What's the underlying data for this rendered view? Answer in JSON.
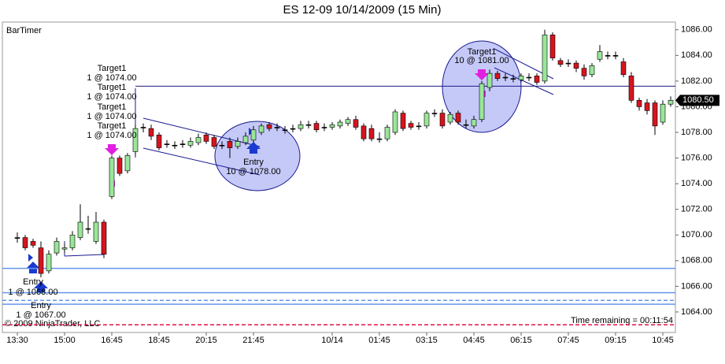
{
  "chart_data": {
    "type": "candlestick",
    "title": "ES 12-09  10/14/2009 (15 Min)",
    "indicator_label": "BarTimer",
    "copyright": "© 2009 NinjaTrader, LLC",
    "timer_text": "Time remaining = 00:11:54",
    "categories": [
      "13:30",
      null,
      null,
      null,
      null,
      null,
      "15:00",
      null,
      null,
      null,
      null,
      null,
      "16:45",
      null,
      null,
      null,
      null,
      null,
      "18:45",
      null,
      null,
      null,
      null,
      null,
      "20:15",
      null,
      null,
      null,
      null,
      null,
      "21:45",
      null,
      null,
      null,
      null,
      null,
      null,
      null,
      null,
      null,
      "10/14",
      null,
      null,
      null,
      null,
      null,
      "01:45",
      null,
      null,
      null,
      null,
      null,
      "03:15",
      null,
      null,
      null,
      null,
      null,
      "04:45",
      null,
      null,
      null,
      null,
      null,
      "06:15",
      null,
      null,
      null,
      null,
      null,
      "07:45",
      null,
      null,
      null,
      null,
      null,
      "09:15",
      null,
      null,
      null,
      null,
      null,
      "10:45",
      null
    ],
    "open": [
      1069.8,
      1069.8,
      1069.5,
      1069.0,
      1067.2,
      1068.6,
      1068.9,
      1069.0,
      1069.8,
      1070.5,
      1069.5,
      1071.0,
      1073.0,
      1076.0,
      1075.0,
      1076.5,
      1078.4,
      1078.3,
      1077.8,
      1077.1,
      1077.0,
      1077.1,
      1077.0,
      1077.2,
      1077.8,
      1077.6,
      1077.0,
      1077.3,
      1076.9,
      1077.2,
      1077.4,
      1078.0,
      1078.6,
      1078.4,
      1078.2,
      1078.3,
      1078.3,
      1078.6,
      1078.7,
      1078.4,
      1078.4,
      1078.5,
      1078.7,
      1079.0,
      1078.5,
      1078.3,
      1077.5,
      1077.5,
      1078.0,
      1079.5,
      1078.7,
      1078.5,
      1078.5,
      1079.5,
      1079.5,
      1078.8,
      1079.5,
      1078.6,
      1078.5,
      1079.0,
      1081.5,
      1082.6,
      1082.3,
      1082.2,
      1082.1,
      1082.3,
      1082.4,
      1082.0,
      1085.6,
      1083.6,
      1083.4,
      1083.4,
      1083.0,
      1082.5,
      1083.7,
      1084.0,
      1084.0,
      1083.5,
      1082.4,
      1080.5,
      1080.3,
      1080.3,
      1078.8,
      1080.2
    ],
    "high": [
      1070.2,
      1070.0,
      1069.7,
      1069.5,
      1068.8,
      1069.8,
      1069.3,
      1070.3,
      1072.4,
      1071.5,
      1071.8,
      1071.2,
      1076.2,
      1076.2,
      1076.4,
      1078.6,
      1078.7,
      1078.6,
      1078.0,
      1077.4,
      1077.3,
      1077.4,
      1077.6,
      1077.9,
      1078.0,
      1077.8,
      1077.3,
      1077.6,
      1077.6,
      1078.0,
      1078.5,
      1078.7,
      1078.8,
      1078.7,
      1078.5,
      1078.6,
      1078.9,
      1078.9,
      1078.9,
      1078.7,
      1078.8,
      1079.0,
      1079.2,
      1079.3,
      1078.7,
      1078.6,
      1078.0,
      1078.6,
      1079.8,
      1079.7,
      1078.9,
      1078.8,
      1079.7,
      1079.8,
      1079.8,
      1079.6,
      1079.7,
      1079.0,
      1079.3,
      1082.0,
      1082.9,
      1082.8,
      1082.6,
      1082.5,
      1082.6,
      1082.6,
      1082.6,
      1086.0,
      1085.8,
      1083.8,
      1083.7,
      1083.6,
      1083.3,
      1083.4,
      1084.8,
      1084.3,
      1084.3,
      1083.8,
      1082.7,
      1080.7,
      1080.6,
      1080.5,
      1080.5,
      1080.8
    ],
    "low": [
      1069.4,
      1068.8,
      1069.0,
      1066.7,
      1067.0,
      1068.4,
      1068.6,
      1068.8,
      1069.6,
      1070.1,
      1069.3,
      1068.2,
      1072.8,
      1074.6,
      1074.8,
      1076.2,
      1078.0,
      1077.4,
      1076.6,
      1076.8,
      1076.7,
      1076.8,
      1076.8,
      1077.0,
      1077.1,
      1076.7,
      1076.7,
      1076.0,
      1076.7,
      1077.0,
      1077.2,
      1077.8,
      1078.1,
      1078.1,
      1077.9,
      1078.0,
      1078.1,
      1078.3,
      1078.0,
      1078.1,
      1078.2,
      1078.3,
      1078.5,
      1078.2,
      1077.3,
      1077.3,
      1077.2,
      1077.3,
      1077.8,
      1078.1,
      1078.2,
      1078.2,
      1078.3,
      1079.2,
      1078.3,
      1078.6,
      1078.6,
      1078.3,
      1078.3,
      1078.8,
      1081.2,
      1082.0,
      1082.0,
      1081.9,
      1081.9,
      1082.0,
      1081.7,
      1081.8,
      1083.6,
      1083.1,
      1083.1,
      1082.7,
      1082.1,
      1082.3,
      1083.5,
      1083.7,
      1083.7,
      1082.3,
      1080.3,
      1079.7,
      1079.4,
      1077.8,
      1078.6,
      1080.0
    ],
    "close": [
      1069.8,
      1069.0,
      1069.2,
      1067.0,
      1068.5,
      1069.5,
      1069.0,
      1070.0,
      1071.0,
      1070.5,
      1071.0,
      1068.5,
      1076.0,
      1074.8,
      1076.2,
      1078.3,
      1078.4,
      1077.7,
      1076.8,
      1077.1,
      1077.0,
      1077.1,
      1077.3,
      1077.6,
      1077.3,
      1076.9,
      1077.0,
      1076.8,
      1077.3,
      1077.7,
      1078.2,
      1078.5,
      1078.3,
      1078.4,
      1078.2,
      1078.3,
      1078.6,
      1078.6,
      1078.2,
      1078.4,
      1078.6,
      1078.8,
      1079.0,
      1078.4,
      1077.5,
      1077.5,
      1077.5,
      1078.4,
      1079.6,
      1078.3,
      1078.4,
      1078.5,
      1079.5,
      1079.5,
      1078.5,
      1079.4,
      1078.8,
      1078.6,
      1079.0,
      1081.8,
      1082.6,
      1082.2,
      1082.3,
      1082.2,
      1082.4,
      1082.3,
      1081.9,
      1085.6,
      1083.8,
      1083.3,
      1083.4,
      1083.0,
      1082.4,
      1083.2,
      1084.3,
      1084.0,
      1084.0,
      1082.5,
      1080.5,
      1080.0,
      1079.7,
      1078.5,
      1080.2,
      1080.5
    ],
    "up_color": "#99e699",
    "down_color": "#d7141e",
    "ylim": [
      1062.4,
      1086.6
    ],
    "yticks": [
      {
        "value": 1064,
        "label": "1064.00"
      },
      {
        "value": 1066,
        "label": "1066.00"
      },
      {
        "value": 1068,
        "label": "1068.00"
      },
      {
        "value": 1070,
        "label": "1070.00"
      },
      {
        "value": 1072,
        "label": "1072.00"
      },
      {
        "value": 1074,
        "label": "1074.00"
      },
      {
        "value": 1076,
        "label": "1076.00"
      },
      {
        "value": 1078,
        "label": "1078.00"
      },
      {
        "value": 1080,
        "label": "1080.00"
      },
      {
        "value": 1082,
        "label": "1082.00"
      },
      {
        "value": 1084,
        "label": "1084.00"
      },
      {
        "value": 1086,
        "label": "1086.00"
      }
    ],
    "last_price": {
      "value": 1080.5,
      "label": "1080.50"
    },
    "levels": [
      {
        "value": 1067.4,
        "color": "#6495ed",
        "style": "solid"
      },
      {
        "value": 1065.5,
        "color": "#6495ed",
        "style": "solid"
      },
      {
        "value": 1064.9,
        "color": "#6495ed",
        "style": "dashed"
      },
      {
        "value": 1064.6,
        "color": "#6495ed",
        "style": "solid"
      },
      {
        "value": 1063.0,
        "color": "#e0104a",
        "style": "dashed"
      },
      {
        "value": 1081.6,
        "color": "#1a1a80",
        "style": "solid"
      }
    ],
    "annotations": [
      "Target1",
      "1 @ 1074.00",
      "Target1",
      "1 @ 1074.00",
      "Target1",
      "1 @ 1074.00",
      "Target1",
      "1 @ 1074.00",
      "Entry",
      "10 @ 1078.00",
      "Target1",
      "10 @ 1081.00",
      "Entry",
      "1 @ 1068.00",
      "Entry",
      "1 @ 1067.00"
    ]
  }
}
